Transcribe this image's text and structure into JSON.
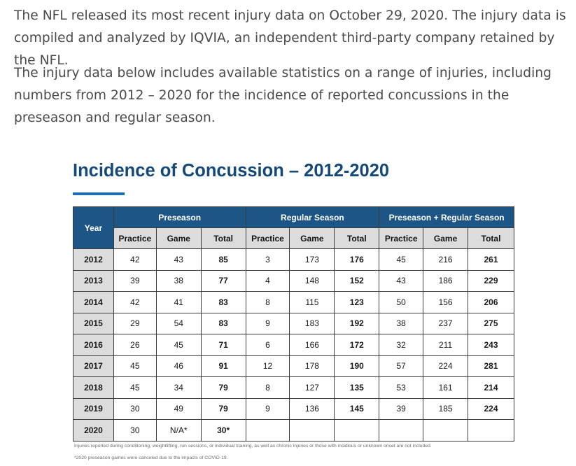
{
  "intro": {
    "paragraph1": "The NFL released its most recent injury data on October 29, 2020. The injury data is compiled and analyzed by IQVIA, an independent third-party company retained by the NFL.",
    "paragraph2": "The injury data below includes available statistics on a range of injuries, including numbers from 2012 – 2020 for the incidence of reported concussions in the preseason and regular season."
  },
  "figure": {
    "title": "Incidence of Concussion – 2012-2020",
    "accent_color": "#1a70c0",
    "header_color": "#1d5586"
  },
  "table": {
    "year_header": "Year",
    "groups": [
      "Preseason",
      "Regular Season",
      "Preseason + Regular Season"
    ],
    "subheaders": [
      "Practice",
      "Game",
      "Total",
      "Practice",
      "Game",
      "Total",
      "Practice",
      "Game",
      "Total"
    ],
    "rows": [
      {
        "year": "2012",
        "cells": [
          "42",
          "43",
          "85",
          "3",
          "173",
          "176",
          "45",
          "216",
          "261"
        ]
      },
      {
        "year": "2013",
        "cells": [
          "39",
          "38",
          "77",
          "4",
          "148",
          "152",
          "43",
          "186",
          "229"
        ]
      },
      {
        "year": "2014",
        "cells": [
          "42",
          "41",
          "83",
          "8",
          "115",
          "123",
          "50",
          "156",
          "206"
        ]
      },
      {
        "year": "2015",
        "cells": [
          "29",
          "54",
          "83",
          "9",
          "183",
          "192",
          "38",
          "237",
          "275"
        ]
      },
      {
        "year": "2016",
        "cells": [
          "26",
          "45",
          "71",
          "6",
          "166",
          "172",
          "32",
          "211",
          "243"
        ]
      },
      {
        "year": "2017",
        "cells": [
          "45",
          "46",
          "91",
          "12",
          "178",
          "190",
          "57",
          "224",
          "281"
        ]
      },
      {
        "year": "2018",
        "cells": [
          "45",
          "34",
          "79",
          "8",
          "127",
          "135",
          "53",
          "161",
          "214"
        ]
      },
      {
        "year": "2019",
        "cells": [
          "30",
          "49",
          "79",
          "9",
          "136",
          "145",
          "39",
          "185",
          "224"
        ]
      },
      {
        "year": "2020",
        "cells": [
          "30",
          "N/A*",
          "30*",
          "",
          "",
          "",
          "",
          "",
          ""
        ]
      }
    ]
  },
  "footnotes": [
    "Injuries reported during conditioning, weightlifting, run sessions, or individual training, as well as chronic injuries or those with insidious or unknown onset are not included.",
    "*2020 preseason games were canceled due to the impacts of COVID-19."
  ]
}
